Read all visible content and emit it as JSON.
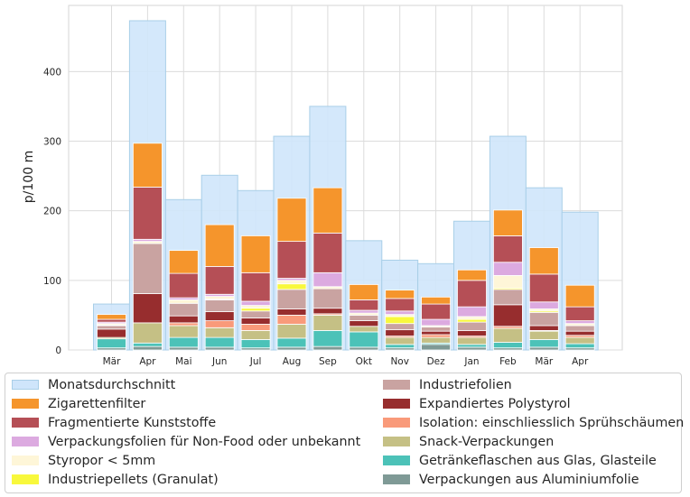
{
  "chart_data": {
    "type": "bar",
    "stacked": true,
    "title": "",
    "xlabel": "",
    "ylabel": "p/100 m",
    "ylim": [
      0,
      495
    ],
    "yticks": [
      0,
      100,
      200,
      300,
      400
    ],
    "grid": true,
    "legend_position": "bottom",
    "categories": [
      "Mär",
      "Apr",
      "Mai",
      "Jun",
      "Jul",
      "Aug",
      "Sep",
      "Okt",
      "Nov",
      "Dez",
      "Jan",
      "Feb",
      "Mär",
      "Apr"
    ],
    "average": {
      "name": "Monatsdurchschnitt",
      "color": "#cfe5fb",
      "values": [
        66,
        473,
        216,
        251,
        229,
        307,
        350,
        157,
        129,
        124,
        185,
        307,
        233,
        198
      ]
    },
    "series": [
      {
        "name": "Verpackungen aus Aluminiumfolie",
        "color": "#7f9a96",
        "values": [
          3,
          5,
          4,
          4,
          3,
          4,
          5,
          4,
          3,
          8,
          4,
          3,
          4,
          3
        ]
      },
      {
        "name": "Getränkeflaschen aus Glas, Glasteile",
        "color": "#4cc2b8",
        "values": [
          13,
          5,
          14,
          14,
          12,
          13,
          23,
          22,
          5,
          2,
          4,
          8,
          11,
          6
        ]
      },
      {
        "name": "Snack-Verpackungen",
        "color": "#c5c085",
        "values": [
          2,
          29,
          17,
          14,
          13,
          20,
          22,
          8,
          10,
          8,
          10,
          20,
          12,
          9
        ]
      },
      {
        "name": "Isolation: einschliesslich Sprühschäumen",
        "color": "#f99a7a",
        "values": [
          0,
          0,
          4,
          10,
          9,
          13,
          2,
          0,
          2,
          4,
          2,
          3,
          1,
          3
        ]
      },
      {
        "name": "Expandiertes Polystyrol",
        "color": "#972d2e",
        "values": [
          12,
          42,
          10,
          13,
          9,
          9,
          8,
          8,
          9,
          5,
          8,
          31,
          7,
          6
        ]
      },
      {
        "name": "Industriefolien",
        "color": "#c9a3a1",
        "values": [
          5,
          72,
          18,
          17,
          10,
          28,
          28,
          8,
          9,
          6,
          12,
          22,
          19,
          8
        ]
      },
      {
        "name": "Industriepellets (Granulat)",
        "color": "#f8f83c",
        "values": [
          1,
          0,
          0,
          1,
          4,
          8,
          0,
          0,
          10,
          0,
          4,
          2,
          2,
          0
        ]
      },
      {
        "name": "Styropor < 5mm",
        "color": "#fef6d8",
        "values": [
          2,
          3,
          5,
          4,
          4,
          5,
          3,
          3,
          3,
          2,
          4,
          18,
          3,
          3
        ]
      },
      {
        "name": "Verpackungsfolien für Non-Food oder unbekannt",
        "color": "#dcaae0",
        "values": [
          2,
          3,
          3,
          3,
          6,
          3,
          20,
          4,
          5,
          9,
          14,
          19,
          10,
          4
        ]
      },
      {
        "name": "Fragmentierte Kunststoffe",
        "color": "#b54f56",
        "values": [
          4,
          75,
          35,
          40,
          41,
          53,
          57,
          15,
          18,
          22,
          38,
          38,
          40,
          20
        ]
      },
      {
        "name": "Zigarettenfilter",
        "color": "#f5952c",
        "values": [
          7,
          63,
          33,
          60,
          53,
          62,
          65,
          22,
          12,
          10,
          15,
          37,
          38,
          31
        ]
      }
    ]
  },
  "legend": {
    "column_left": [
      "Monatsdurchschnitt",
      "Zigarettenfilter",
      "Fragmentierte Kunststoffe",
      "Verpackungsfolien für Non-Food oder unbekannt",
      "Styropor < 5mm",
      "Industriepellets (Granulat)"
    ],
    "column_right": [
      "Industriefolien",
      "Expandiertes Polystyrol",
      "Isolation: einschliesslich Sprühschäumen",
      "Snack-Verpackungen",
      "Getränkeflaschen aus Glas, Glasteile",
      "Verpackungen aus Aluminiumfolie"
    ]
  }
}
